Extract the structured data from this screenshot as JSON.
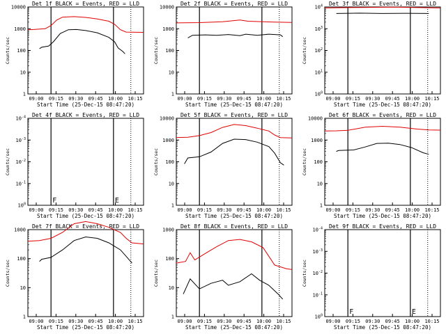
{
  "legend_suffix": "BLACK = Events, RED = LLD",
  "xlabel": "Start Time (25-Dec-15 08:47:20)",
  "ylabel": "Counts/sec",
  "x_ticks": [
    "09:00",
    "09:15",
    "09:30",
    "09:45",
    "10:00",
    "10:15"
  ],
  "colors": {
    "events": "#000000",
    "lld": "#e00000"
  },
  "chart_data": [
    {
      "type": "line",
      "title": "Det 1f",
      "scale": "log",
      "y_ticks": [
        "1",
        "10",
        "100",
        "1000",
        "10000"
      ],
      "event_marks": [],
      "series": [
        {
          "name": "LLD",
          "color": "red",
          "points": [
            [
              0,
              900
            ],
            [
              0.05,
              920
            ],
            [
              0.15,
              1000
            ],
            [
              0.2,
              1400
            ],
            [
              0.25,
              2500
            ],
            [
              0.3,
              3400
            ],
            [
              0.4,
              3600
            ],
            [
              0.5,
              3300
            ],
            [
              0.6,
              2800
            ],
            [
              0.7,
              2200
            ],
            [
              0.75,
              1600
            ],
            [
              0.8,
              900
            ],
            [
              0.85,
              700
            ],
            [
              1,
              680
            ]
          ]
        },
        {
          "name": "Events",
          "color": "black",
          "points": [
            [
              0.1,
              120
            ],
            [
              0.12,
              140
            ],
            [
              0.18,
              160
            ],
            [
              0.22,
              250
            ],
            [
              0.28,
              600
            ],
            [
              0.35,
              900
            ],
            [
              0.42,
              920
            ],
            [
              0.5,
              820
            ],
            [
              0.6,
              650
            ],
            [
              0.7,
              400
            ],
            [
              0.75,
              250
            ],
            [
              0.78,
              130
            ],
            [
              0.82,
              90
            ],
            [
              0.84,
              70
            ]
          ]
        }
      ]
    },
    {
      "type": "line",
      "title": "Det 2f",
      "scale": "log",
      "y_ticks": [
        "1",
        "10",
        "100",
        "1000",
        "10000"
      ],
      "event_marks": [],
      "series": [
        {
          "name": "LLD",
          "color": "red",
          "points": [
            [
              0,
              1850
            ],
            [
              0.2,
              1900
            ],
            [
              0.4,
              2100
            ],
            [
              0.55,
              2500
            ],
            [
              0.62,
              2200
            ],
            [
              0.75,
              2100
            ],
            [
              0.85,
              2000
            ],
            [
              1,
              1950
            ]
          ]
        },
        {
          "name": "Events",
          "color": "black",
          "points": [
            [
              0.1,
              380
            ],
            [
              0.14,
              500
            ],
            [
              0.25,
              520
            ],
            [
              0.35,
              500
            ],
            [
              0.45,
              540
            ],
            [
              0.55,
              480
            ],
            [
              0.6,
              560
            ],
            [
              0.7,
              500
            ],
            [
              0.8,
              560
            ],
            [
              0.9,
              520
            ],
            [
              0.92,
              430
            ]
          ]
        }
      ]
    },
    {
      "type": "line",
      "title": "Det 3f",
      "scale": "log",
      "y_ticks": [
        "10^0",
        "10^1",
        "10^2",
        "10^3",
        "10^4"
      ],
      "event_marks": [],
      "series": [
        {
          "name": "LLD",
          "color": "red",
          "points": [
            [
              0,
              9000
            ],
            [
              0.3,
              9500
            ],
            [
              0.6,
              9800
            ],
            [
              0.9,
              9200
            ],
            [
              1,
              9000
            ]
          ]
        },
        {
          "name": "Events",
          "color": "black",
          "points": [
            [
              0.1,
              5000
            ],
            [
              0.3,
              5200
            ],
            [
              0.5,
              5000
            ],
            [
              0.7,
              5100
            ],
            [
              0.9,
              5000
            ]
          ]
        }
      ]
    },
    {
      "type": "line",
      "title": "Det 4f",
      "scale": "log",
      "y_ticks": [
        "10^0",
        "10^-1",
        "10^-2",
        "10^-3",
        "10^-4"
      ],
      "event_marks": [
        "F",
        "E"
      ],
      "series": []
    },
    {
      "type": "line",
      "title": "Det 5f",
      "scale": "log",
      "y_ticks": [
        "1",
        "10",
        "100",
        "1000",
        "10000"
      ],
      "event_marks": [],
      "series": [
        {
          "name": "LLD",
          "color": "red",
          "points": [
            [
              0,
              1300
            ],
            [
              0.1,
              1350
            ],
            [
              0.2,
              1600
            ],
            [
              0.3,
              2200
            ],
            [
              0.4,
              3800
            ],
            [
              0.5,
              5200
            ],
            [
              0.6,
              4600
            ],
            [
              0.7,
              3500
            ],
            [
              0.8,
              2600
            ],
            [
              0.85,
              1700
            ],
            [
              0.9,
              1300
            ],
            [
              1,
              1250
            ]
          ]
        },
        {
          "name": "Events",
          "color": "black",
          "points": [
            [
              0.07,
              80
            ],
            [
              0.1,
              150
            ],
            [
              0.2,
              170
            ],
            [
              0.3,
              280
            ],
            [
              0.4,
              700
            ],
            [
              0.5,
              1100
            ],
            [
              0.6,
              1050
            ],
            [
              0.7,
              800
            ],
            [
              0.8,
              500
            ],
            [
              0.85,
              250
            ],
            [
              0.9,
              90
            ],
            [
              0.93,
              70
            ]
          ]
        }
      ]
    },
    {
      "type": "line",
      "title": "Det 6f",
      "scale": "log",
      "y_ticks": [
        "1",
        "10",
        "100",
        "1000",
        "10000"
      ],
      "event_marks": [],
      "series": [
        {
          "name": "LLD",
          "color": "red",
          "points": [
            [
              0,
              2600
            ],
            [
              0.1,
              2650
            ],
            [
              0.2,
              2800
            ],
            [
              0.35,
              3900
            ],
            [
              0.5,
              4300
            ],
            [
              0.65,
              3900
            ],
            [
              0.8,
              3200
            ],
            [
              0.9,
              2900
            ],
            [
              1,
              2850
            ]
          ]
        },
        {
          "name": "Events",
          "color": "black",
          "points": [
            [
              0.1,
              300
            ],
            [
              0.12,
              330
            ],
            [
              0.25,
              350
            ],
            [
              0.35,
              480
            ],
            [
              0.45,
              700
            ],
            [
              0.55,
              720
            ],
            [
              0.65,
              620
            ],
            [
              0.75,
              450
            ],
            [
              0.85,
              260
            ],
            [
              0.9,
              220
            ]
          ]
        }
      ]
    },
    {
      "type": "line",
      "title": "Det 7f",
      "scale": "log",
      "y_ticks": [
        "1",
        "10",
        "100",
        "1000"
      ],
      "event_marks": [],
      "series": [
        {
          "name": "LLD",
          "color": "red",
          "points": [
            [
              0,
              400
            ],
            [
              0.1,
              420
            ],
            [
              0.2,
              500
            ],
            [
              0.3,
              800
            ],
            [
              0.4,
              1600
            ],
            [
              0.5,
              1900
            ],
            [
              0.6,
              1600
            ],
            [
              0.7,
              1200
            ],
            [
              0.8,
              800
            ],
            [
              0.85,
              500
            ],
            [
              0.9,
              350
            ],
            [
              1,
              320
            ]
          ]
        },
        {
          "name": "Events",
          "color": "black",
          "points": [
            [
              0.1,
              80
            ],
            [
              0.12,
              95
            ],
            [
              0.2,
              110
            ],
            [
              0.3,
              200
            ],
            [
              0.4,
              420
            ],
            [
              0.5,
              560
            ],
            [
              0.6,
              500
            ],
            [
              0.7,
              350
            ],
            [
              0.8,
              200
            ],
            [
              0.85,
              120
            ],
            [
              0.9,
              70
            ]
          ]
        }
      ]
    },
    {
      "type": "line",
      "title": "Det 8f",
      "scale": "log",
      "y_ticks": [
        "1",
        "10",
        "100",
        "1000"
      ],
      "event_marks": [],
      "series": [
        {
          "name": "LLD",
          "color": "red",
          "points": [
            [
              0,
              70
            ],
            [
              0.08,
              80
            ],
            [
              0.12,
              160
            ],
            [
              0.16,
              90
            ],
            [
              0.25,
              150
            ],
            [
              0.35,
              260
            ],
            [
              0.45,
              420
            ],
            [
              0.55,
              460
            ],
            [
              0.65,
              380
            ],
            [
              0.75,
              240
            ],
            [
              0.85,
              60
            ],
            [
              0.95,
              45
            ],
            [
              1,
              42
            ]
          ]
        },
        {
          "name": "Events",
          "color": "black",
          "points": [
            [
              0.06,
              6
            ],
            [
              0.12,
              20
            ],
            [
              0.2,
              9
            ],
            [
              0.3,
              14
            ],
            [
              0.4,
              18
            ],
            [
              0.45,
              12
            ],
            [
              0.55,
              16
            ],
            [
              0.65,
              30
            ],
            [
              0.72,
              18
            ],
            [
              0.8,
              12
            ],
            [
              0.88,
              6
            ],
            [
              0.92,
              4
            ]
          ]
        }
      ]
    },
    {
      "type": "line",
      "title": "Det 9f",
      "scale": "log",
      "y_ticks": [
        "10^0",
        "10^-1",
        "10^-2",
        "10^-3",
        "10^-4"
      ],
      "event_marks": [
        "F",
        "E"
      ],
      "series": []
    }
  ]
}
